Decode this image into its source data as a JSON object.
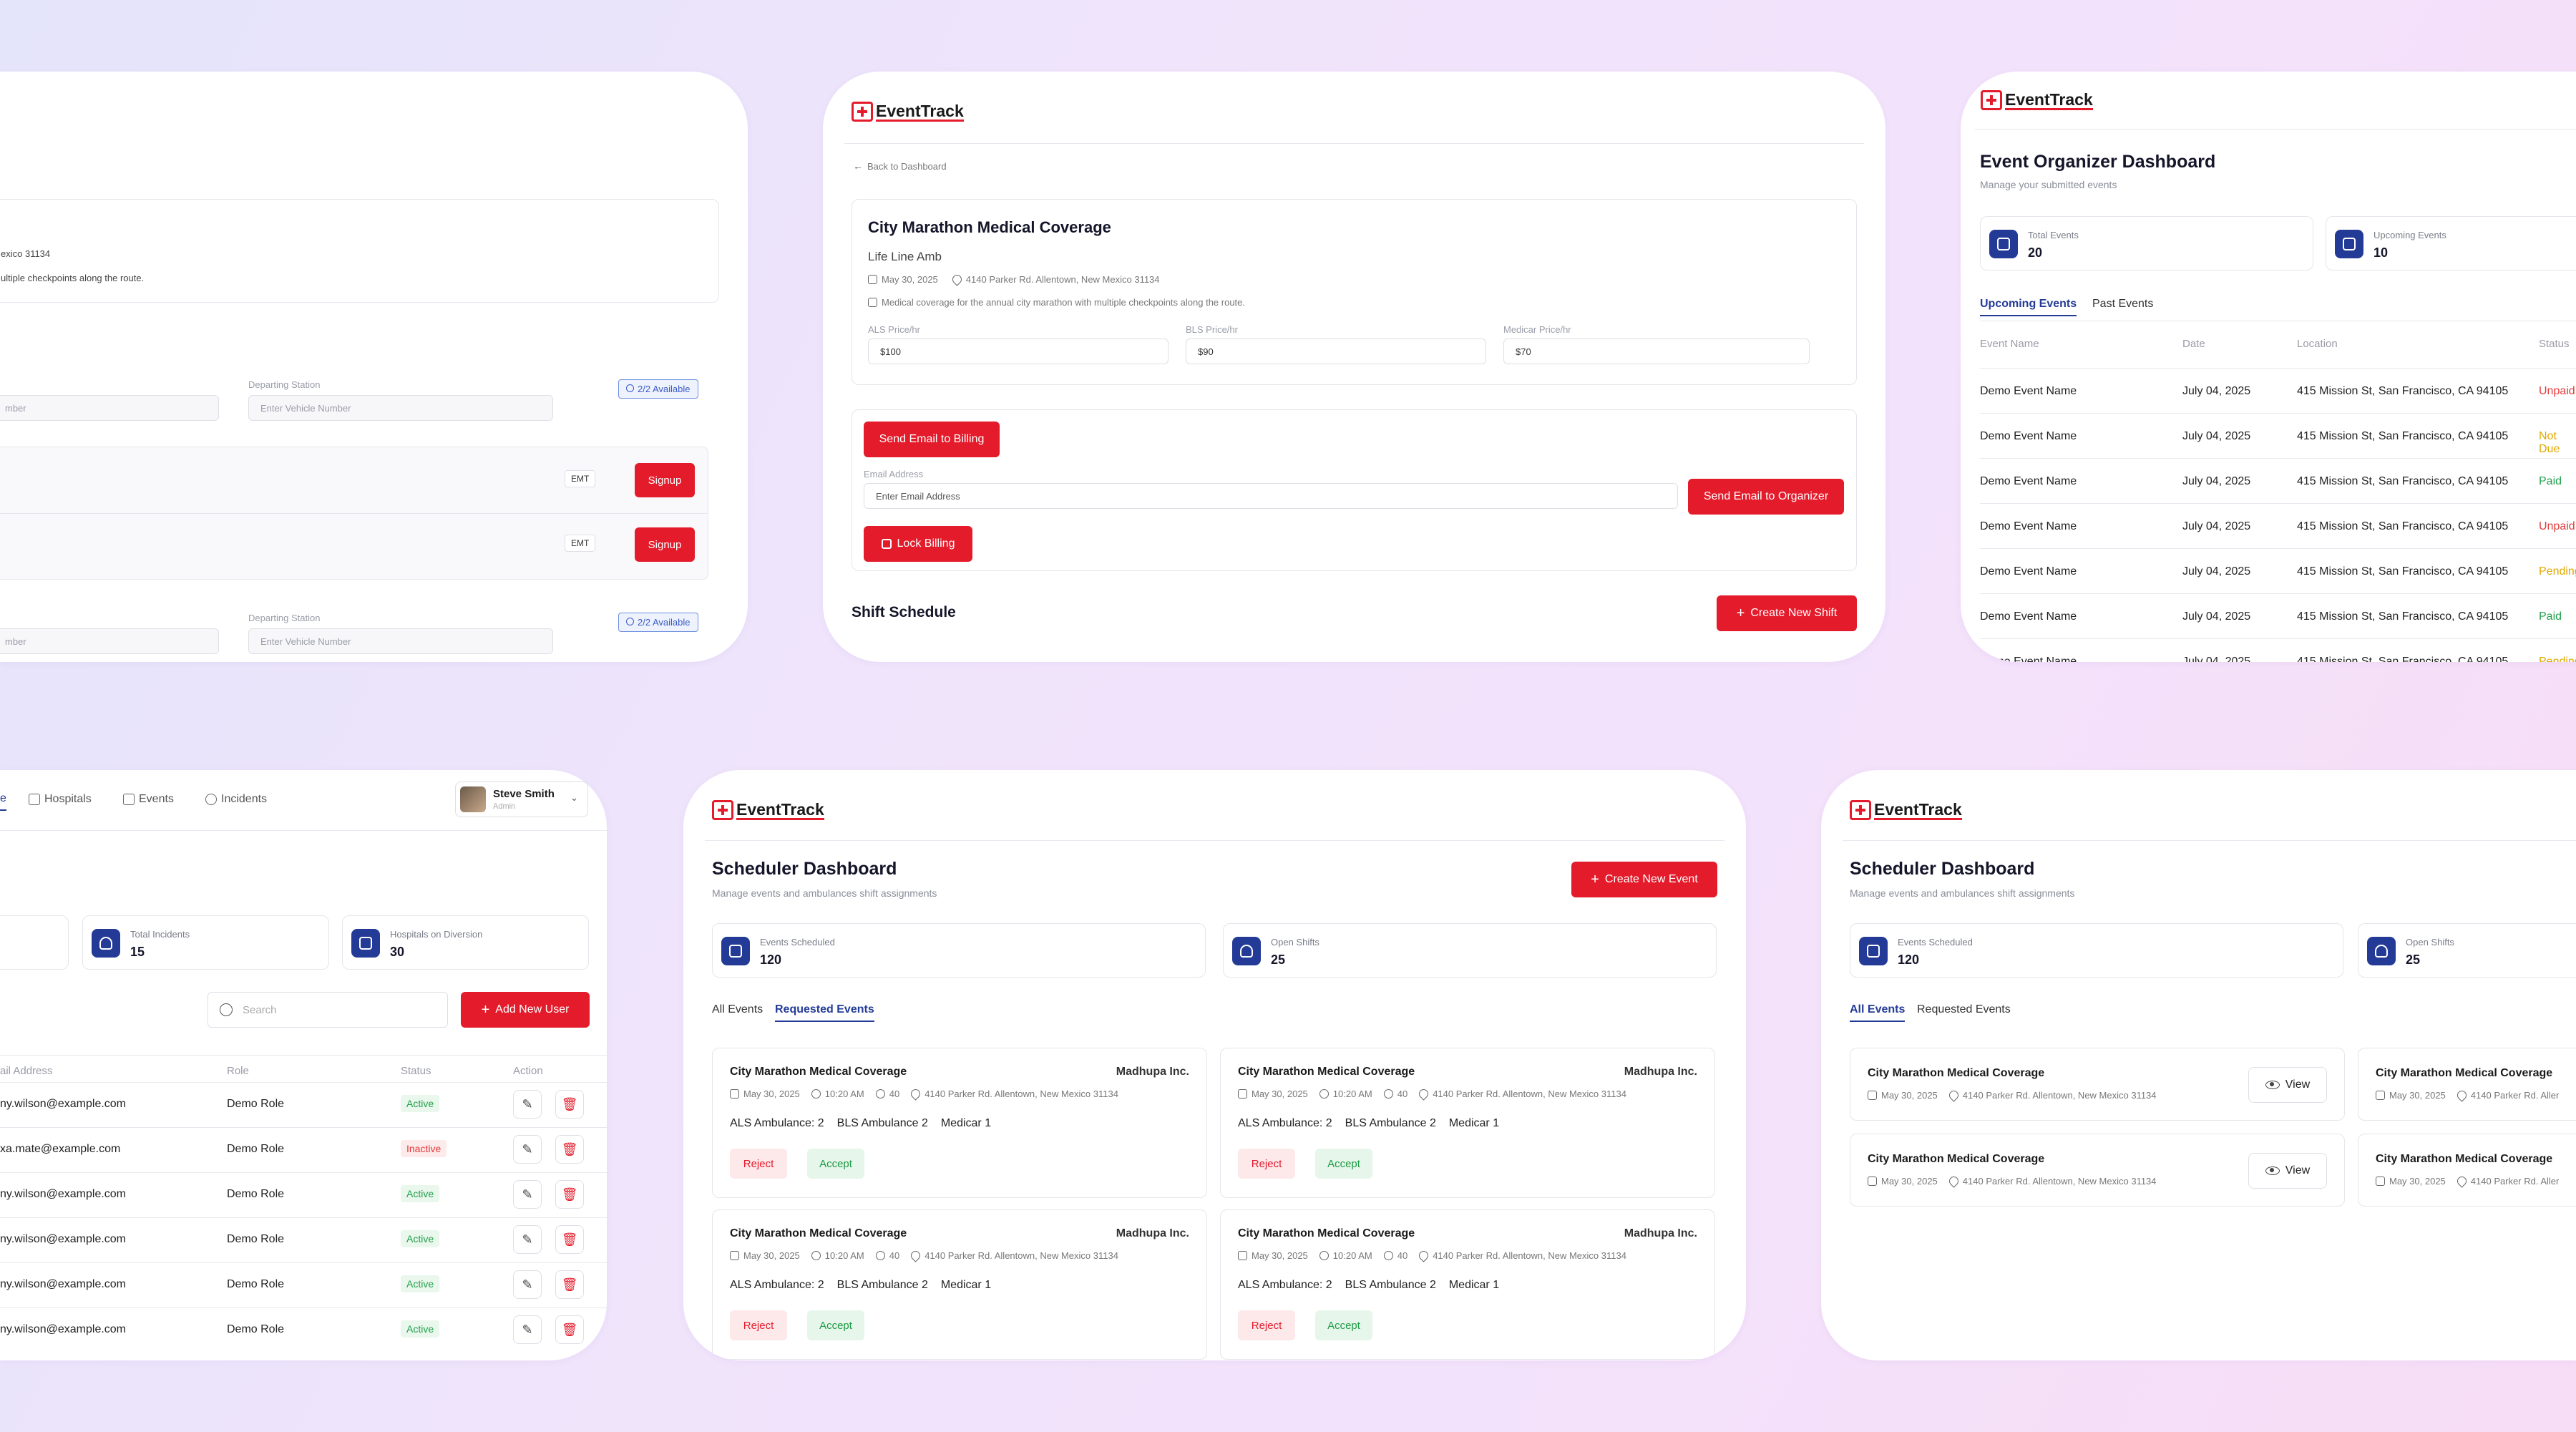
{
  "brand": {
    "name": "EventTrack",
    "color": "#e31b2b",
    "navy": "#233b97"
  },
  "p1": {
    "partial_location": "exico 31134",
    "partial_description": "ultiple checkpoints along the route.",
    "departing_station_label": "Departing Station",
    "vehicle_placeholder": "Enter Vehicle Number",
    "partial_number": "mber",
    "available": "2/2 Available",
    "role_tag": "EMT",
    "signup": "Signup"
  },
  "p2": {
    "back": "Back to Dashboard",
    "event_title": "City Marathon Medical Coverage",
    "org": "Life Line Amb",
    "date": "May 30, 2025",
    "location": "4140 Parker Rd. Allentown, New Mexico 31134",
    "description": "Medical coverage for the annual city marathon with multiple checkpoints along the route.",
    "prices": [
      {
        "label": "ALS Price/hr",
        "value": "$100"
      },
      {
        "label": "BLS Price/hr",
        "value": "$90"
      },
      {
        "label": "Medicar Price/hr",
        "value": "$70"
      }
    ],
    "send_billing": "Send Email to Billing",
    "email_label": "Email Address",
    "email_placeholder": "Enter Email Address",
    "send_organizer": "Send Email to Organizer",
    "lock_billing": "Lock Billing",
    "shift_schedule": "Shift Schedule",
    "create_shift": "Create New Shift"
  },
  "p3": {
    "title": "Event Organizer Dashboard",
    "subtitle": "Manage your submitted events",
    "stats": [
      {
        "label": "Total Events",
        "value": "20"
      },
      {
        "label": "Upcoming Events",
        "value": "10"
      }
    ],
    "tabs": [
      "Upcoming Events",
      "Past Events"
    ],
    "columns": [
      "Event Name",
      "Date",
      "Location",
      "Status"
    ],
    "rows": [
      {
        "name": "Demo Event Name",
        "date": "July 04, 2025",
        "location": "415 Mission St, San Francisco, CA 94105",
        "status": "Unpaid",
        "color": "#e23b3b"
      },
      {
        "name": "Demo Event Name",
        "date": "July 04, 2025",
        "location": "415 Mission St, San Francisco, CA 94105",
        "status": "Not Due",
        "color": "#e0a800"
      },
      {
        "name": "Demo Event Name",
        "date": "July 04, 2025",
        "location": "415 Mission St, San Francisco, CA 94105",
        "status": "Paid",
        "color": "#22a04b"
      },
      {
        "name": "Demo Event Name",
        "date": "July 04, 2025",
        "location": "415 Mission St, San Francisco, CA 94105",
        "status": "Unpaid",
        "color": "#e23b3b"
      },
      {
        "name": "Demo Event Name",
        "date": "July 04, 2025",
        "location": "415 Mission St, San Francisco, CA 94105",
        "status": "Pending",
        "color": "#e0a800"
      },
      {
        "name": "Demo Event Name",
        "date": "July 04, 2025",
        "location": "415 Mission St, San Francisco, CA 94105",
        "status": "Paid",
        "color": "#22a04b"
      },
      {
        "name": "Demo Event Name",
        "date": "July 04, 2025",
        "location": "415 Mission St, San Francisco, CA 94105",
        "status": "Pending",
        "color": "#e0a800"
      }
    ]
  },
  "p4": {
    "nav": [
      "e",
      "Hospitals",
      "Events",
      "Incidents"
    ],
    "user_name": "Steve Smith",
    "user_role": "Admin",
    "stats": [
      {
        "label": "Total Incidents",
        "value": "15"
      },
      {
        "label": "Hospitals on Diversion",
        "value": "30"
      }
    ],
    "search_placeholder": "Search",
    "add_user": "Add New User",
    "columns": [
      "ail Address",
      "Role",
      "Status",
      "Action"
    ],
    "rows": [
      {
        "email": "ny.wilson@example.com",
        "role": "Demo Role",
        "status": "Active"
      },
      {
        "email": "xa.mate@example.com",
        "role": "Demo Role",
        "status": "Inactive"
      },
      {
        "email": "ny.wilson@example.com",
        "role": "Demo Role",
        "status": "Active"
      },
      {
        "email": "ny.wilson@example.com",
        "role": "Demo Role",
        "status": "Active"
      },
      {
        "email": "ny.wilson@example.com",
        "role": "Demo Role",
        "status": "Active"
      },
      {
        "email": "ny.wilson@example.com",
        "role": "Demo Role",
        "status": "Active"
      }
    ]
  },
  "p5": {
    "title": "Scheduler Dashboard",
    "subtitle": "Manage events and ambulances shift assignments",
    "create_event": "Create New Event",
    "stats": [
      {
        "label": "Events Scheduled",
        "value": "120"
      },
      {
        "label": "Open Shifts",
        "value": "25"
      }
    ],
    "tabs": [
      "All Events",
      "Requested Events"
    ],
    "card": {
      "title": "City Marathon Medical Coverage",
      "org": "Madhupa Inc.",
      "date": "May 30, 2025",
      "time": "10:20 AM",
      "people": "40",
      "location": "4140 Parker Rd. Allentown, New Mexico 31134",
      "units": [
        "ALS Ambulance: 2",
        "BLS Ambulance 2",
        "Medicar 1"
      ],
      "reject": "Reject",
      "accept": "Accept"
    }
  },
  "p6": {
    "title": "Scheduler Dashboard",
    "subtitle": "Manage events and ambulances shift assignments",
    "stats": [
      {
        "label": "Events Scheduled",
        "value": "120"
      },
      {
        "label": "Open Shifts",
        "value": "25"
      }
    ],
    "tabs": [
      "All Events",
      "Requested Events"
    ],
    "card": {
      "title": "City Marathon Medical Coverage",
      "date": "May 30, 2025",
      "location": "4140 Parker Rd. Allentown, New Mexico 31134",
      "partial_location": "4140 Parker Rd. Aller",
      "view": "View"
    }
  }
}
